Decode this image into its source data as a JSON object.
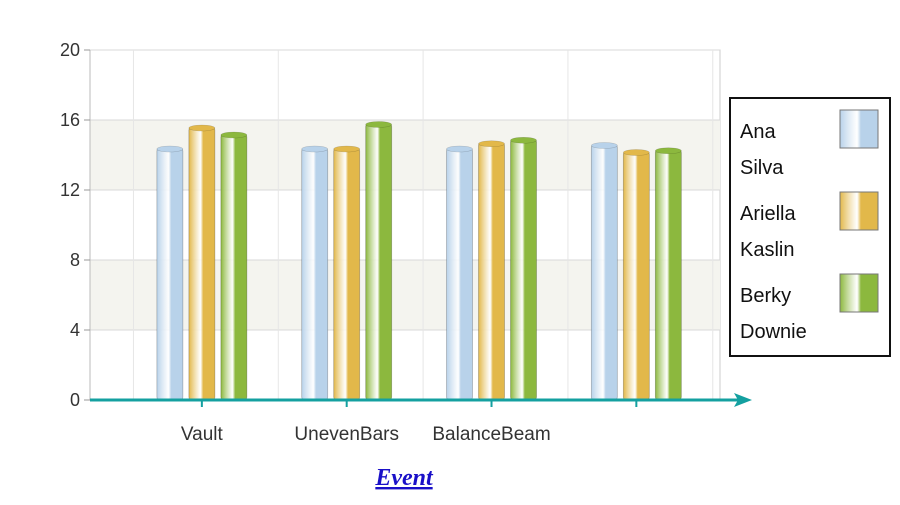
{
  "chart_data": {
    "type": "bar",
    "title": "",
    "xlabel": "Event",
    "ylabel": "",
    "ylim": [
      0,
      20
    ],
    "yticks": [
      0,
      4,
      8,
      12,
      16,
      20
    ],
    "categories": [
      "Vault",
      "UnevenBars",
      "BalanceBeam",
      ""
    ],
    "series": [
      {
        "name": "Ana Silva",
        "legend_lines": [
          "Ana",
          "Silva"
        ],
        "color": "#b8d2ea",
        "values": [
          14.4,
          14.4,
          14.4,
          14.6
        ]
      },
      {
        "name": "Ariella Kaslin",
        "legend_lines": [
          "Ariella",
          "Kaslin"
        ],
        "color": "#e2b84a",
        "values": [
          15.6,
          14.4,
          14.7,
          14.2
        ]
      },
      {
        "name": "Berky Downie",
        "legend_lines": [
          "Berky",
          "Downie"
        ],
        "color": "#8cb83e",
        "values": [
          15.2,
          15.8,
          14.9,
          14.3
        ]
      }
    ],
    "grid": true,
    "legend_position": "right",
    "colors": {
      "axis": "#14a0a0",
      "grid": "#d8d8d8",
      "band": "#f4f4ef",
      "frame": "#cccccc"
    }
  }
}
